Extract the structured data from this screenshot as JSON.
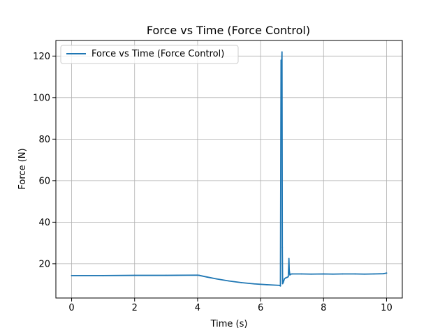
{
  "chart_data": {
    "type": "line",
    "title": "Force vs Time (Force Control)",
    "xlabel": "Time (s)",
    "ylabel": "Force (N)",
    "xlim": [
      -0.5,
      10.5
    ],
    "ylim": [
      3.5,
      127.5
    ],
    "xticks": [
      0,
      2,
      4,
      6,
      8,
      10
    ],
    "yticks": [
      20,
      40,
      60,
      80,
      100,
      120
    ],
    "grid": true,
    "legend_position": "top-left",
    "series": [
      {
        "name": "Force vs Time (Force Control)",
        "color": "#1f77b4",
        "x": [
          0,
          1,
          2,
          3,
          4,
          4.05,
          4.3,
          4.6,
          5.0,
          5.4,
          5.8,
          6.2,
          6.6,
          6.63,
          6.65,
          6.66,
          6.68,
          6.69,
          6.7,
          6.72,
          6.74,
          6.76,
          6.8,
          6.85,
          6.88,
          6.9,
          6.91,
          6.93,
          6.96,
          7.0,
          7.3,
          7.6,
          8.0,
          8.3,
          8.6,
          9.0,
          9.3,
          9.6,
          9.9,
          10.0
        ],
        "y": [
          14.3,
          14.3,
          14.4,
          14.4,
          14.5,
          14.4,
          13.6,
          12.7,
          11.7,
          10.9,
          10.3,
          9.9,
          9.6,
          9.3,
          118.0,
          112.0,
          122.0,
          28.0,
          10.4,
          11.0,
          12.0,
          12.8,
          13.2,
          13.5,
          13.8,
          22.5,
          17.0,
          14.6,
          15.0,
          15.1,
          15.1,
          15.0,
          15.1,
          15.0,
          15.1,
          15.1,
          15.0,
          15.1,
          15.2,
          15.5
        ]
      }
    ]
  }
}
